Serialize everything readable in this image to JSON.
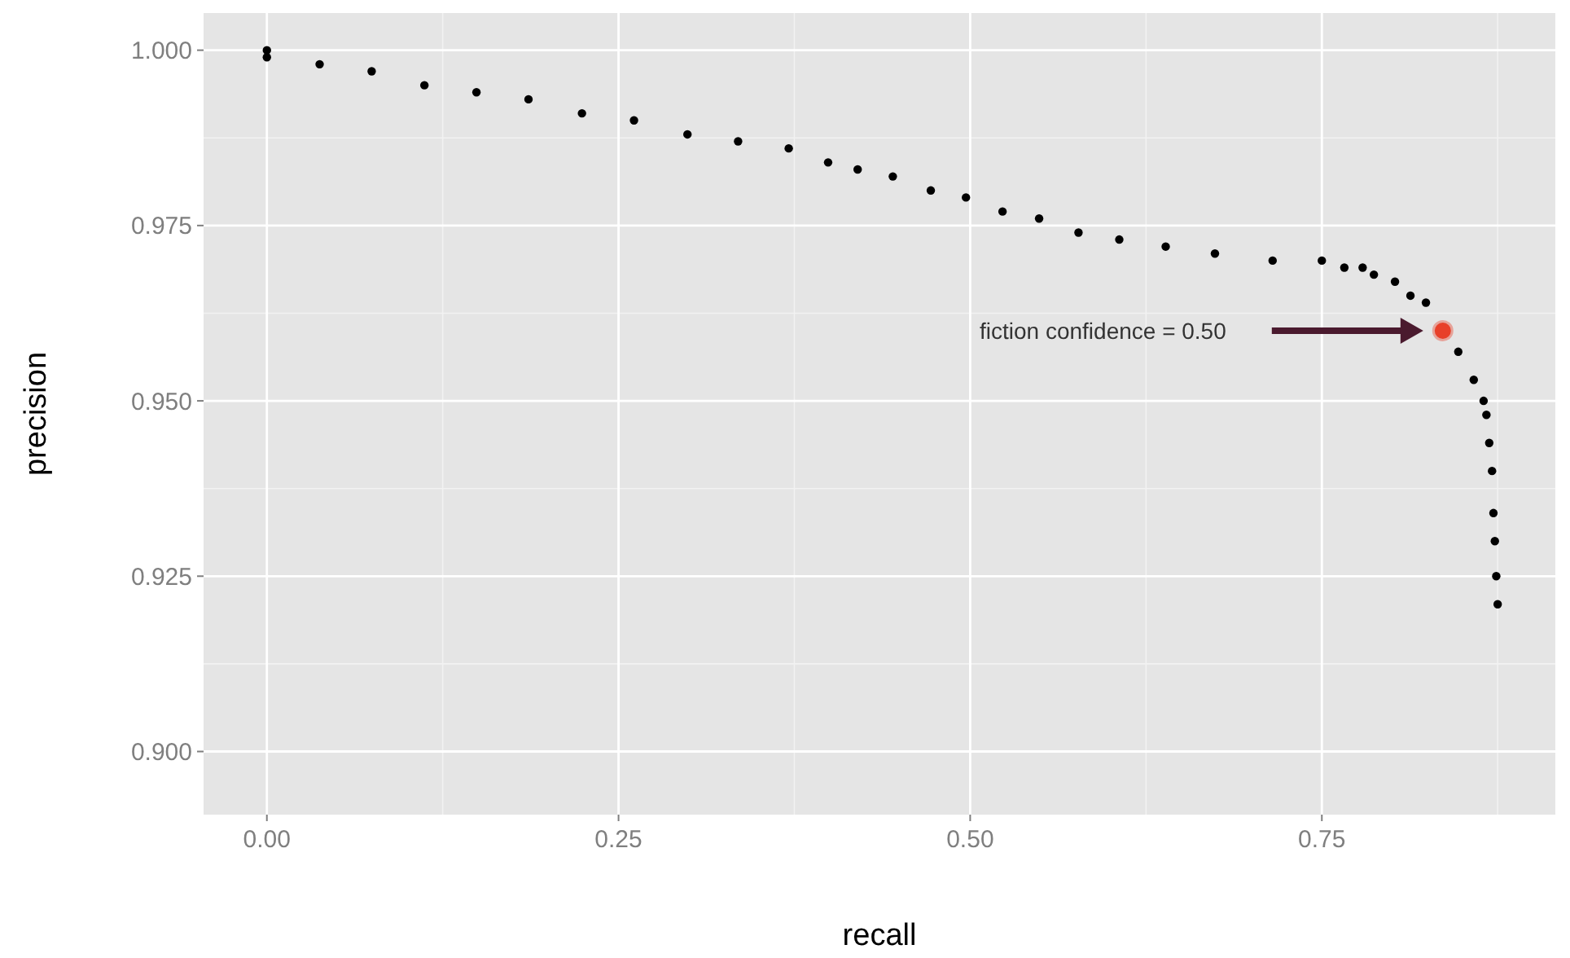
{
  "chart_data": {
    "type": "scatter",
    "xlabel": "recall",
    "ylabel": "precision",
    "xlim": [
      -0.045,
      0.916
    ],
    "ylim": [
      0.891,
      1.0053
    ],
    "xticks": [
      {
        "value": 0,
        "label": "0.00"
      },
      0.25,
      {
        "value": 0.5,
        "label": "0.50"
      },
      0.75
    ],
    "yticks": [
      {
        "value": 0.9,
        "label": "0.900"
      },
      {
        "value": 0.925,
        "label": "0.925"
      },
      {
        "value": 0.95,
        "label": "0.950"
      },
      {
        "value": 0.975,
        "label": "0.975"
      },
      {
        "value": 1,
        "label": "1.000"
      }
    ],
    "grid": true,
    "marker": "circle",
    "series": [
      {
        "color": "#000000",
        "x": [
          0,
          0,
          0.0375,
          0.0745,
          0.112,
          0.149,
          0.186,
          0.224,
          0.261,
          0.299,
          0.335,
          0.371,
          0.399,
          0.42,
          0.445,
          0.472,
          0.497,
          0.523,
          0.549,
          0.577,
          0.606,
          0.639,
          0.674,
          0.715,
          0.75,
          0.766,
          0.779,
          0.787,
          0.802,
          0.813,
          0.824,
          0.847,
          0.858,
          0.865,
          0.867,
          0.869,
          0.871,
          0.872,
          0.873,
          0.874,
          0.875
        ],
        "values": [
          1,
          0.999,
          0.998,
          0.997,
          0.995,
          0.994,
          0.993,
          0.991,
          0.99,
          0.988,
          0.987,
          0.986,
          0.984,
          0.983,
          0.982,
          0.98,
          0.979,
          0.977,
          0.976,
          0.974,
          0.973,
          0.972,
          0.971,
          0.97,
          0.97,
          0.969,
          0.969,
          0.968,
          0.967,
          0.965,
          0.964,
          0.957,
          0.953,
          0.95,
          0.948,
          0.944,
          0.94,
          0.934,
          0.93,
          0.925,
          0.921
        ]
      },
      {
        "color": "#e8402a",
        "x": [
          0.836
        ],
        "values": [
          0.96
        ]
      }
    ],
    "annotations": [
      "fiction confidence = 0.50"
    ]
  }
}
